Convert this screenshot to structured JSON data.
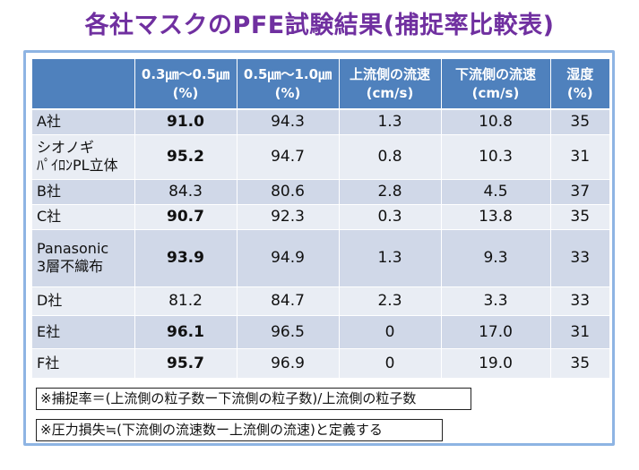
{
  "title": "各社マスクのPFE試験結果(捕捉率比較表)",
  "headers": [
    {
      "line1": "",
      "line2": ""
    },
    {
      "line1": "0.3㎛〜0.5㎛",
      "line2": "(%)"
    },
    {
      "line1": "0.5㎛〜1.0㎛",
      "line2": "(%)"
    },
    {
      "line1": "上流側の流速",
      "line2": "(cm/s)"
    },
    {
      "line1": "下流側の流速",
      "line2": "(cm/s)"
    },
    {
      "line1": "湿度",
      "line2": "(%)"
    }
  ],
  "rows": [
    {
      "name1": "A社",
      "name2": "",
      "c1": "91.0",
      "c2": "94.3",
      "c3": "1.3",
      "c4": "10.8",
      "c5": "35",
      "bold": true
    },
    {
      "name1": "シオノギ",
      "name2": "ﾊﾟｲﾛﾝPL立体",
      "c1": "95.2",
      "c2": "94.7",
      "c3": "0.8",
      "c4": "10.3",
      "c5": "31",
      "bold": true
    },
    {
      "name1": "B社",
      "name2": "",
      "c1": "84.3",
      "c2": "80.6",
      "c3": "2.8",
      "c4": "4.5",
      "c5": "37",
      "bold": false
    },
    {
      "name1": "C社",
      "name2": "",
      "c1": "90.7",
      "c2": "92.3",
      "c3": "0.3",
      "c4": "13.8",
      "c5": "35",
      "bold": true
    },
    {
      "name1": "Panasonic",
      "name2": "3層不織布",
      "c1": "93.9",
      "c2": "94.9",
      "c3": "1.3",
      "c4": "9.3",
      "c5": "33",
      "bold": true
    },
    {
      "name1": "D社",
      "name2": "",
      "c1": "81.2",
      "c2": "84.7",
      "c3": "2.3",
      "c4": "3.3",
      "c5": "33",
      "bold": false
    },
    {
      "name1": "E社",
      "name2": "",
      "c1": "96.1",
      "c2": "96.5",
      "c3": "0",
      "c4": "17.0",
      "c5": "31",
      "bold": true
    },
    {
      "name1": "F社",
      "name2": "",
      "c1": "95.7",
      "c2": "96.9",
      "c3": "0",
      "c4": "19.0",
      "c5": "35",
      "bold": true
    }
  ],
  "notes": {
    "capture": "※捕捉率＝(上流側の粒子数ー下流側の粒子数)/上流側の粒子数",
    "pressure": "※圧力損失≒(下流側の流速数ー上流側の流速)と定義する"
  },
  "colors": {
    "title": "#7030a0",
    "header_bg": "#4f81bd",
    "row_odd": "#d0d8e8",
    "row_even": "#e9edf4",
    "frame": "#8eb4e3"
  }
}
